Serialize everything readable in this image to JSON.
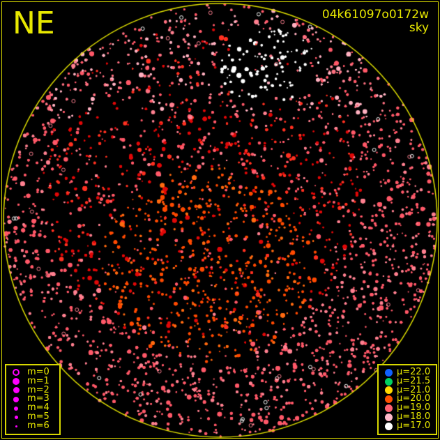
{
  "plot": {
    "direction_label": "NE",
    "title_line1": "04k61097o0172w",
    "title_line2": "sky",
    "border_color": "#e8e800"
  },
  "magnitude_legend": {
    "color": "#ff00ff",
    "items": [
      {
        "label": "m=0",
        "style": "ring"
      },
      {
        "label": "m=1",
        "style": "dot"
      },
      {
        "label": "m=2",
        "style": "dot"
      },
      {
        "label": "m=3",
        "style": "dot"
      },
      {
        "label": "m=4",
        "style": "dot"
      },
      {
        "label": "m=5",
        "style": "dot"
      },
      {
        "label": "m=6",
        "style": "dot"
      }
    ]
  },
  "brightness_legend": {
    "items": [
      {
        "label": "μ=22.0",
        "color": "#1060ff"
      },
      {
        "label": "μ=21.5",
        "color": "#00d060"
      },
      {
        "label": "μ=21.0",
        "color": "#ffd800"
      },
      {
        "label": "μ=20.0",
        "color": "#ff5000"
      },
      {
        "label": "μ=19.0",
        "color": "#ff6070"
      },
      {
        "label": "μ=18.0",
        "color": "#ffb8c8"
      },
      {
        "label": "μ=17.0",
        "color": "#ffffff"
      }
    ]
  }
}
